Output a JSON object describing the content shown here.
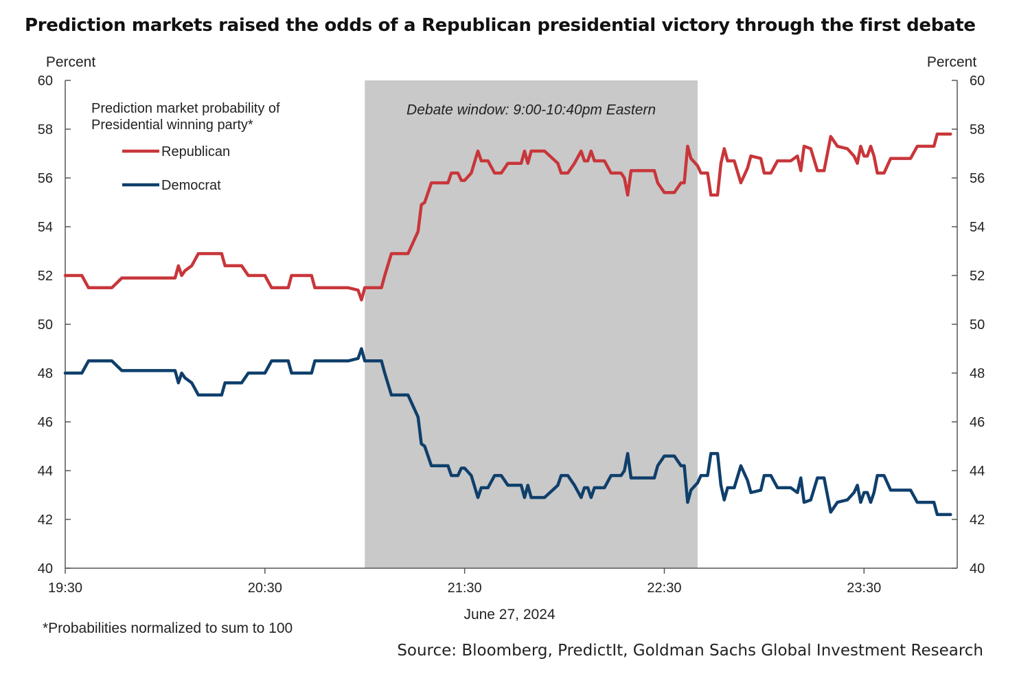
{
  "title": "Prediction markets raised the odds of a Republican presidential victory through the first debate",
  "footnote": "*Probabilities normalized to sum to 100",
  "source": "Source: Bloomberg, PredictIt, Goldman Sachs Global Investment Research",
  "chart_data": {
    "type": "line",
    "title": "Prediction markets raised the odds of a Republican presidential victory through the first debate",
    "xlabel": "June 27, 2024",
    "ylabel_left": "Percent",
    "ylabel_right": "Percent",
    "ylim": [
      40,
      60
    ],
    "yticks": [
      "40",
      "42",
      "44",
      "46",
      "48",
      "50",
      "52",
      "54",
      "56",
      "58",
      "60"
    ],
    "xlim": [
      "19:30",
      "23:58"
    ],
    "xticks": [
      "19:30",
      "20:30",
      "21:30",
      "22:30",
      "23:30"
    ],
    "grid": false,
    "legend": {
      "title": "Prediction market probability of Presidential winning party*",
      "placement": "top-left",
      "entries": [
        "Republican",
        "Democrat"
      ]
    },
    "shaded_region": {
      "label": "Debate window: 9:00-10:40pm Eastern",
      "start": "21:00",
      "end": "22:40"
    },
    "colors": {
      "Republican": "#c8363a",
      "Democrat": "#0f3f6b",
      "shade": "#c9c9c9"
    },
    "series": [
      {
        "name": "Republican",
        "points": [
          [
            "19:30",
            52.0
          ],
          [
            "19:35",
            52.0
          ],
          [
            "19:37",
            51.5
          ],
          [
            "19:44",
            51.5
          ],
          [
            "19:47",
            51.9
          ],
          [
            "19:55",
            51.9
          ],
          [
            "20:00",
            51.9
          ],
          [
            "20:03",
            51.9
          ],
          [
            "20:04",
            52.4
          ],
          [
            "20:05",
            52.0
          ],
          [
            "20:06",
            52.2
          ],
          [
            "20:08",
            52.4
          ],
          [
            "20:10",
            52.9
          ],
          [
            "20:17",
            52.9
          ],
          [
            "20:18",
            52.4
          ],
          [
            "20:23",
            52.4
          ],
          [
            "20:25",
            52.0
          ],
          [
            "20:30",
            52.0
          ],
          [
            "20:32",
            51.5
          ],
          [
            "20:37",
            51.5
          ],
          [
            "20:38",
            52.0
          ],
          [
            "20:44",
            52.0
          ],
          [
            "20:45",
            51.5
          ],
          [
            "20:50",
            51.5
          ],
          [
            "20:55",
            51.5
          ],
          [
            "20:58",
            51.4
          ],
          [
            "20:59",
            51.0
          ],
          [
            "21:00",
            51.5
          ],
          [
            "21:04",
            51.5
          ],
          [
            "21:05",
            51.5
          ],
          [
            "21:06",
            52.0
          ],
          [
            "21:08",
            52.9
          ],
          [
            "21:13",
            52.9
          ],
          [
            "21:16",
            53.8
          ],
          [
            "21:17",
            54.9
          ],
          [
            "21:18",
            55.0
          ],
          [
            "21:20",
            55.8
          ],
          [
            "21:25",
            55.8
          ],
          [
            "21:26",
            56.2
          ],
          [
            "21:28",
            56.2
          ],
          [
            "21:29",
            55.9
          ],
          [
            "21:30",
            55.9
          ],
          [
            "21:32",
            56.2
          ],
          [
            "21:34",
            57.1
          ],
          [
            "21:35",
            56.7
          ],
          [
            "21:37",
            56.7
          ],
          [
            "21:39",
            56.2
          ],
          [
            "21:41",
            56.2
          ],
          [
            "21:43",
            56.6
          ],
          [
            "21:47",
            56.6
          ],
          [
            "21:48",
            57.1
          ],
          [
            "21:49",
            56.6
          ],
          [
            "21:50",
            57.1
          ],
          [
            "21:54",
            57.1
          ],
          [
            "21:58",
            56.6
          ],
          [
            "21:59",
            56.2
          ],
          [
            "22:01",
            56.2
          ],
          [
            "22:03",
            56.6
          ],
          [
            "22:05",
            57.1
          ],
          [
            "22:06",
            56.7
          ],
          [
            "22:07",
            56.7
          ],
          [
            "22:08",
            57.1
          ],
          [
            "22:09",
            56.7
          ],
          [
            "22:12",
            56.7
          ],
          [
            "22:14",
            56.2
          ],
          [
            "22:16",
            56.2
          ],
          [
            "22:17",
            56.2
          ],
          [
            "22:18",
            56.0
          ],
          [
            "22:19",
            55.3
          ],
          [
            "22:20",
            56.3
          ],
          [
            "22:25",
            56.3
          ],
          [
            "22:27",
            56.3
          ],
          [
            "22:28",
            55.8
          ],
          [
            "22:30",
            55.4
          ],
          [
            "22:33",
            55.4
          ],
          [
            "22:35",
            55.8
          ],
          [
            "22:36",
            55.8
          ],
          [
            "22:37",
            57.3
          ],
          [
            "22:38",
            56.8
          ],
          [
            "22:40",
            56.5
          ],
          [
            "22:41",
            56.2
          ],
          [
            "22:43",
            56.2
          ],
          [
            "22:44",
            55.3
          ],
          [
            "22:46",
            55.3
          ],
          [
            "22:47",
            56.6
          ],
          [
            "22:48",
            57.2
          ],
          [
            "22:49",
            56.7
          ],
          [
            "22:51",
            56.7
          ],
          [
            "22:53",
            55.8
          ],
          [
            "22:55",
            56.4
          ],
          [
            "22:56",
            56.9
          ],
          [
            "22:59",
            56.8
          ],
          [
            "23:00",
            56.2
          ],
          [
            "23:02",
            56.2
          ],
          [
            "23:04",
            56.7
          ],
          [
            "23:08",
            56.7
          ],
          [
            "23:10",
            56.9
          ],
          [
            "23:11",
            56.3
          ],
          [
            "23:12",
            57.3
          ],
          [
            "23:14",
            57.2
          ],
          [
            "23:16",
            56.3
          ],
          [
            "23:18",
            56.3
          ],
          [
            "23:20",
            57.7
          ],
          [
            "23:22",
            57.3
          ],
          [
            "23:25",
            57.2
          ],
          [
            "23:27",
            56.9
          ],
          [
            "23:28",
            56.6
          ],
          [
            "23:29",
            57.3
          ],
          [
            "23:30",
            56.9
          ],
          [
            "23:31",
            56.9
          ],
          [
            "23:32",
            57.3
          ],
          [
            "23:33",
            56.9
          ],
          [
            "23:34",
            56.2
          ],
          [
            "23:36",
            56.2
          ],
          [
            "23:38",
            56.8
          ],
          [
            "23:44",
            56.8
          ],
          [
            "23:46",
            57.3
          ],
          [
            "23:51",
            57.3
          ],
          [
            "23:52",
            57.8
          ],
          [
            "23:56",
            57.8
          ]
        ]
      },
      {
        "name": "Democrat",
        "points": [
          [
            "19:30",
            48.0
          ],
          [
            "19:35",
            48.0
          ],
          [
            "19:37",
            48.5
          ],
          [
            "19:44",
            48.5
          ],
          [
            "19:47",
            48.1
          ],
          [
            "19:55",
            48.1
          ],
          [
            "20:00",
            48.1
          ],
          [
            "20:03",
            48.1
          ],
          [
            "20:04",
            47.6
          ],
          [
            "20:05",
            48.0
          ],
          [
            "20:06",
            47.8
          ],
          [
            "20:08",
            47.6
          ],
          [
            "20:10",
            47.1
          ],
          [
            "20:17",
            47.1
          ],
          [
            "20:18",
            47.6
          ],
          [
            "20:23",
            47.6
          ],
          [
            "20:25",
            48.0
          ],
          [
            "20:30",
            48.0
          ],
          [
            "20:32",
            48.5
          ],
          [
            "20:37",
            48.5
          ],
          [
            "20:38",
            48.0
          ],
          [
            "20:44",
            48.0
          ],
          [
            "20:45",
            48.5
          ],
          [
            "20:50",
            48.5
          ],
          [
            "20:55",
            48.5
          ],
          [
            "20:58",
            48.6
          ],
          [
            "20:59",
            49.0
          ],
          [
            "21:00",
            48.5
          ],
          [
            "21:04",
            48.5
          ],
          [
            "21:05",
            48.5
          ],
          [
            "21:06",
            48.0
          ],
          [
            "21:08",
            47.1
          ],
          [
            "21:13",
            47.1
          ],
          [
            "21:16",
            46.2
          ],
          [
            "21:17",
            45.1
          ],
          [
            "21:18",
            45.0
          ],
          [
            "21:20",
            44.2
          ],
          [
            "21:25",
            44.2
          ],
          [
            "21:26",
            43.8
          ],
          [
            "21:28",
            43.8
          ],
          [
            "21:29",
            44.1
          ],
          [
            "21:30",
            44.1
          ],
          [
            "21:32",
            43.8
          ],
          [
            "21:34",
            42.9
          ],
          [
            "21:35",
            43.3
          ],
          [
            "21:37",
            43.3
          ],
          [
            "21:39",
            43.8
          ],
          [
            "21:41",
            43.8
          ],
          [
            "21:43",
            43.4
          ],
          [
            "21:47",
            43.4
          ],
          [
            "21:48",
            42.9
          ],
          [
            "21:49",
            43.4
          ],
          [
            "21:50",
            42.9
          ],
          [
            "21:54",
            42.9
          ],
          [
            "21:58",
            43.4
          ],
          [
            "21:59",
            43.8
          ],
          [
            "22:01",
            43.8
          ],
          [
            "22:03",
            43.4
          ],
          [
            "22:05",
            42.9
          ],
          [
            "22:06",
            43.3
          ],
          [
            "22:07",
            43.3
          ],
          [
            "22:08",
            42.9
          ],
          [
            "22:09",
            43.3
          ],
          [
            "22:12",
            43.3
          ],
          [
            "22:14",
            43.8
          ],
          [
            "22:16",
            43.8
          ],
          [
            "22:17",
            43.8
          ],
          [
            "22:18",
            44.0
          ],
          [
            "22:19",
            44.7
          ],
          [
            "22:20",
            43.7
          ],
          [
            "22:25",
            43.7
          ],
          [
            "22:27",
            43.7
          ],
          [
            "22:28",
            44.2
          ],
          [
            "22:30",
            44.6
          ],
          [
            "22:33",
            44.6
          ],
          [
            "22:35",
            44.2
          ],
          [
            "22:36",
            44.2
          ],
          [
            "22:37",
            42.7
          ],
          [
            "22:38",
            43.2
          ],
          [
            "22:40",
            43.5
          ],
          [
            "22:41",
            43.8
          ],
          [
            "22:43",
            43.8
          ],
          [
            "22:44",
            44.7
          ],
          [
            "22:46",
            44.7
          ],
          [
            "22:47",
            43.4
          ],
          [
            "22:48",
            42.8
          ],
          [
            "22:49",
            43.3
          ],
          [
            "22:51",
            43.3
          ],
          [
            "22:53",
            44.2
          ],
          [
            "22:55",
            43.6
          ],
          [
            "22:56",
            43.1
          ],
          [
            "22:59",
            43.2
          ],
          [
            "23:00",
            43.8
          ],
          [
            "23:02",
            43.8
          ],
          [
            "23:04",
            43.3
          ],
          [
            "23:08",
            43.3
          ],
          [
            "23:10",
            43.1
          ],
          [
            "23:11",
            43.7
          ],
          [
            "23:12",
            42.7
          ],
          [
            "23:14",
            42.8
          ],
          [
            "23:16",
            43.7
          ],
          [
            "23:18",
            43.7
          ],
          [
            "23:20",
            42.3
          ],
          [
            "23:22",
            42.7
          ],
          [
            "23:25",
            42.8
          ],
          [
            "23:27",
            43.1
          ],
          [
            "23:28",
            43.4
          ],
          [
            "23:29",
            42.7
          ],
          [
            "23:30",
            43.1
          ],
          [
            "23:31",
            43.1
          ],
          [
            "23:32",
            42.7
          ],
          [
            "23:33",
            43.1
          ],
          [
            "23:34",
            43.8
          ],
          [
            "23:36",
            43.8
          ],
          [
            "23:38",
            43.2
          ],
          [
            "23:44",
            43.2
          ],
          [
            "23:46",
            42.7
          ],
          [
            "23:51",
            42.7
          ],
          [
            "23:52",
            42.2
          ],
          [
            "23:56",
            42.2
          ]
        ]
      }
    ]
  }
}
